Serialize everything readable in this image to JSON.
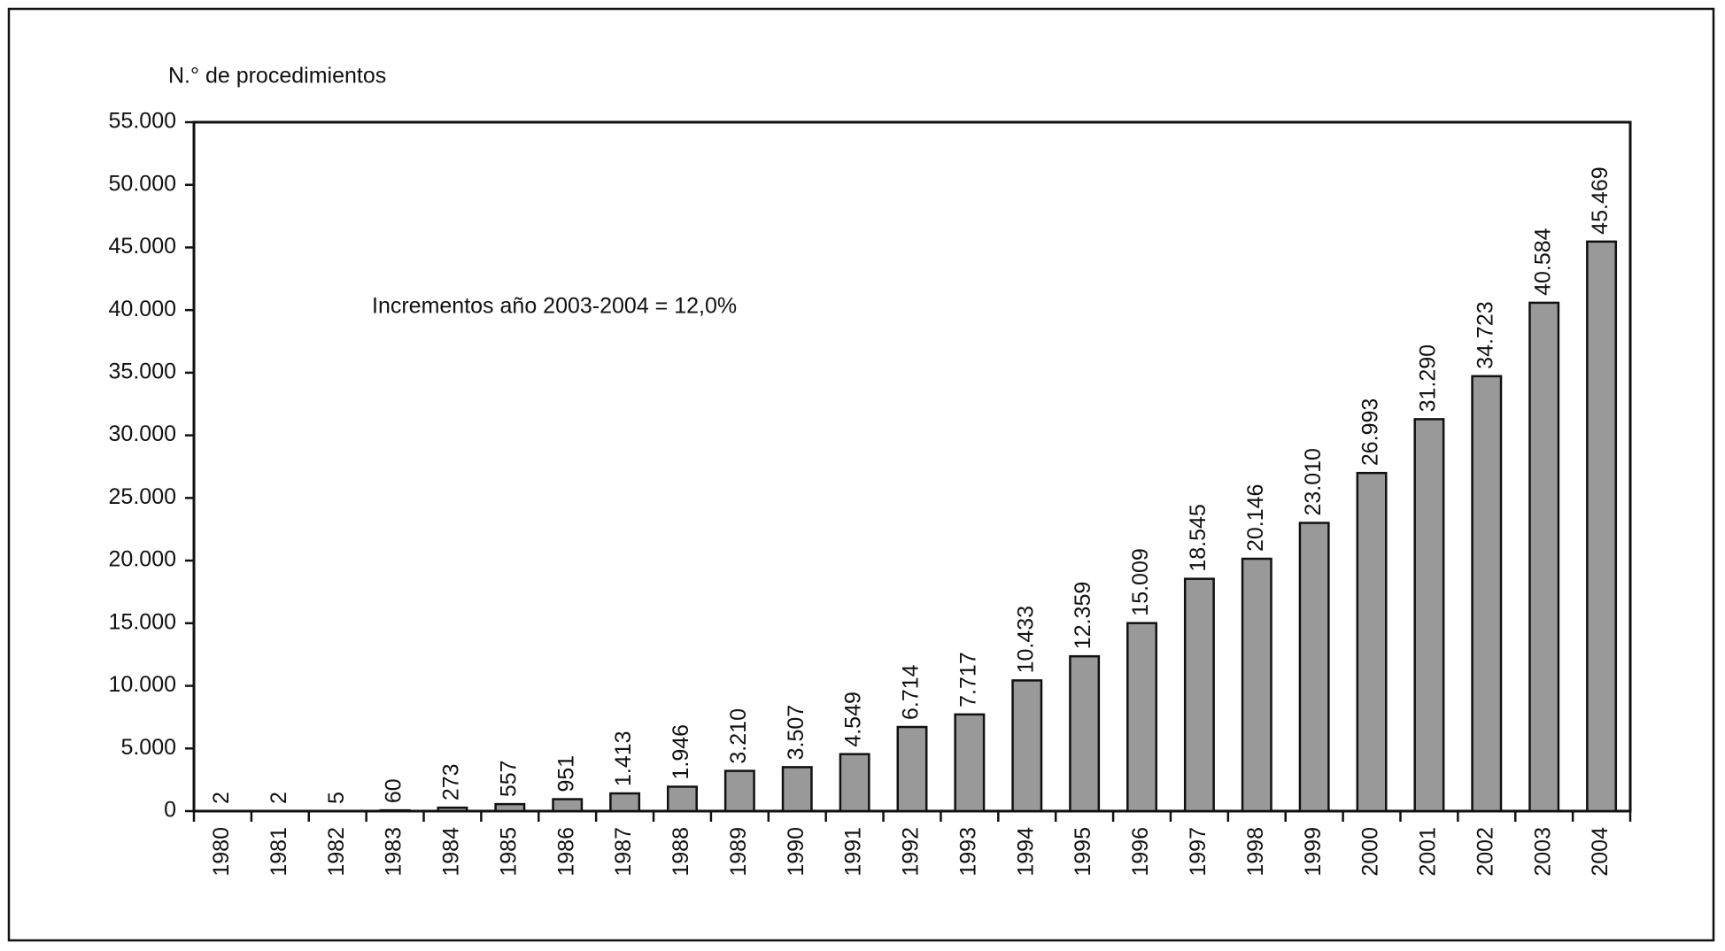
{
  "chart_data": {
    "type": "bar",
    "y_label": "N.° de procedimientos",
    "annotation": "Incrementos año 2003-2004 = 12,0%",
    "categories": [
      "1980",
      "1981",
      "1982",
      "1983",
      "1984",
      "1985",
      "1986",
      "1987",
      "1988",
      "1989",
      "1990",
      "1991",
      "1992",
      "1993",
      "1994",
      "1995",
      "1996",
      "1997",
      "1998",
      "1999",
      "2000",
      "2001",
      "2002",
      "2003",
      "2004"
    ],
    "values": [
      2,
      2,
      5,
      60,
      273,
      557,
      951,
      1413,
      1946,
      3210,
      3507,
      4549,
      6714,
      7717,
      10433,
      12359,
      15009,
      18545,
      20146,
      23010,
      26993,
      31290,
      34723,
      40584,
      45469
    ],
    "value_labels": [
      "2",
      "2",
      "5",
      "60",
      "273",
      "557",
      "951",
      "1.413",
      "1.946",
      "3.210",
      "3.507",
      "4.549",
      "6.714",
      "7.717",
      "10.433",
      "12.359",
      "15.009",
      "18.545",
      "20.146",
      "23.010",
      "26.993",
      "31.290",
      "34.723",
      "40.584",
      "45.469"
    ],
    "color": "#999999",
    "ylim": [
      0,
      55000
    ],
    "yticks": [
      0,
      {
        "value": 5000,
        "label": "5.000"
      },
      {
        "value": 10000,
        "label": "10.000"
      },
      {
        "value": 15000,
        "label": "15.000"
      },
      {
        "value": 20000,
        "label": "20.000"
      },
      {
        "value": 25000,
        "label": "25.000"
      },
      {
        "value": 30000,
        "label": "30.000"
      },
      {
        "value": 35000,
        "label": "35.000"
      },
      {
        "value": 40000,
        "label": "40.000"
      },
      {
        "value": 45000,
        "label": "45.000"
      },
      {
        "value": 50000,
        "label": "50.000"
      },
      {
        "value": 55000,
        "label": "55.000"
      }
    ],
    "grid": false
  }
}
